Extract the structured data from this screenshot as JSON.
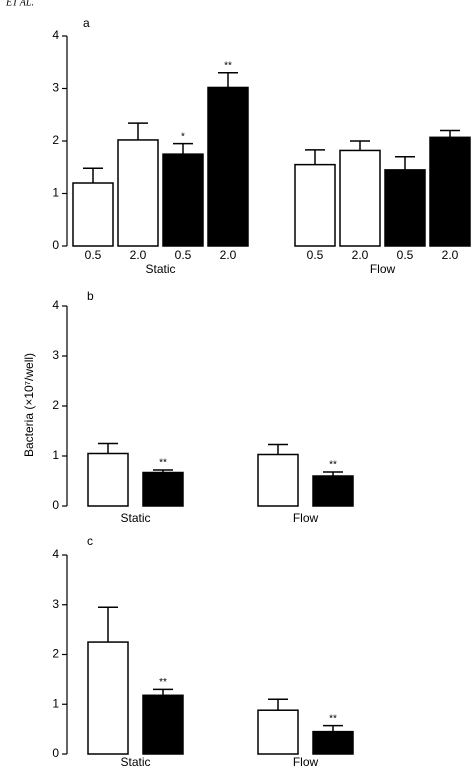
{
  "header": "ET AL.",
  "y_label": "Bacteria (×10⁷/well)",
  "chart_data": [
    {
      "type": "bar",
      "panel": "a",
      "ylim": [
        0,
        4
      ],
      "yticks": [
        0,
        1,
        2,
        3,
        4
      ],
      "groups": [
        {
          "name": "Static",
          "bars": [
            {
              "label": "0.5",
              "value": 1.2,
              "error": 0.28,
              "color": "#ffffff"
            },
            {
              "label": "2.0",
              "value": 2.02,
              "error": 0.32,
              "color": "#ffffff"
            },
            {
              "label": "0.5",
              "value": 1.75,
              "error": 0.2,
              "color": "#000000",
              "annotation": "*"
            },
            {
              "label": "2.0",
              "value": 3.02,
              "error": 0.28,
              "color": "#000000",
              "annotation": "**"
            }
          ]
        },
        {
          "name": "Flow",
          "bars": [
            {
              "label": "0.5",
              "value": 1.55,
              "error": 0.28,
              "color": "#ffffff"
            },
            {
              "label": "2.0",
              "value": 1.82,
              "error": 0.18,
              "color": "#ffffff"
            },
            {
              "label": "0.5",
              "value": 1.45,
              "error": 0.25,
              "color": "#000000"
            },
            {
              "label": "2.0",
              "value": 2.07,
              "error": 0.13,
              "color": "#000000"
            }
          ]
        }
      ]
    },
    {
      "type": "bar",
      "panel": "b",
      "ylim": [
        0,
        4
      ],
      "yticks": [
        0,
        1,
        2,
        3,
        4
      ],
      "groups": [
        {
          "name": "Static",
          "bars": [
            {
              "value": 1.05,
              "error": 0.2,
              "color": "#ffffff"
            },
            {
              "value": 0.67,
              "error": 0.05,
              "color": "#000000",
              "annotation": "**"
            }
          ]
        },
        {
          "name": "Flow",
          "bars": [
            {
              "value": 1.03,
              "error": 0.2,
              "color": "#ffffff"
            },
            {
              "value": 0.6,
              "error": 0.08,
              "color": "#000000",
              "annotation": "**"
            }
          ]
        }
      ]
    },
    {
      "type": "bar",
      "panel": "c",
      "ylim": [
        0,
        4
      ],
      "yticks": [
        0,
        1,
        2,
        3,
        4
      ],
      "groups": [
        {
          "name": "Static",
          "bars": [
            {
              "value": 2.25,
              "error": 0.7,
              "color": "#ffffff"
            },
            {
              "value": 1.18,
              "error": 0.12,
              "color": "#000000",
              "annotation": "**"
            }
          ]
        },
        {
          "name": "Flow",
          "bars": [
            {
              "value": 0.88,
              "error": 0.22,
              "color": "#ffffff"
            },
            {
              "value": 0.45,
              "error": 0.12,
              "color": "#000000",
              "annotation": "**"
            }
          ]
        }
      ]
    }
  ]
}
